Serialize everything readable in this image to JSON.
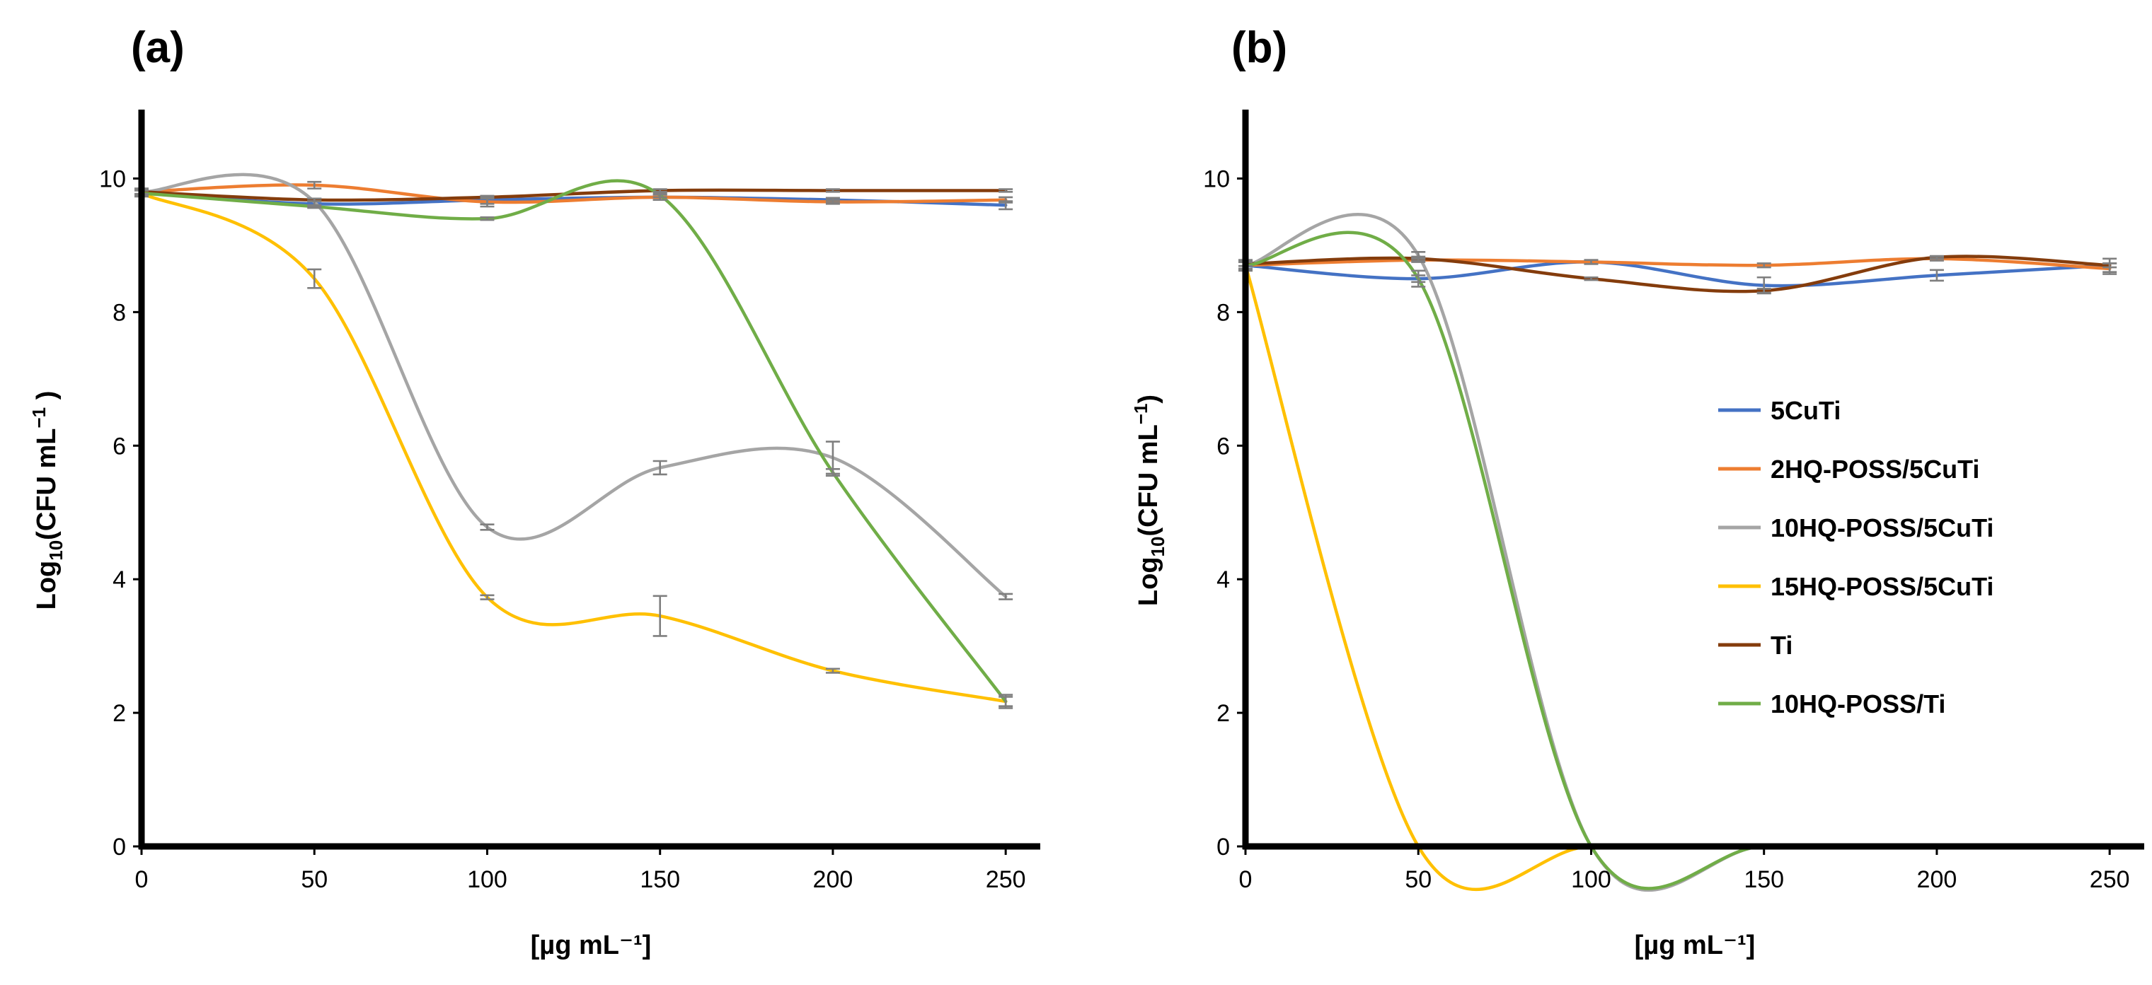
{
  "chart_data": [
    {
      "panel_label": "(a)",
      "type": "line",
      "xlabel": "[µg mL⁻¹]",
      "ylabel": "Log10(CFU mL⁻¹ )",
      "ylabel_main": "Log",
      "ylabel_sub": "10",
      "ylabel_rest": "(CFU mL",
      "ylabel_sup": "−1",
      "ylabel_end": " )",
      "xlim": [
        0,
        260
      ],
      "ylim": [
        0,
        11
      ],
      "xticks": [
        0,
        50,
        100,
        150,
        200,
        250
      ],
      "yticks": [
        0,
        2,
        4,
        6,
        8,
        10
      ],
      "xtick_labels": [
        "0",
        "50",
        "100",
        "150",
        "200",
        "250"
      ],
      "ytick_labels": [
        "0",
        "2",
        "4",
        "6",
        "8",
        "10"
      ],
      "x": [
        0,
        50,
        100,
        150,
        200,
        250
      ],
      "series": [
        {
          "name": "5CuTi",
          "color": "#4472C4",
          "values": [
            9.8,
            9.62,
            9.68,
            9.72,
            9.68,
            9.6
          ],
          "errors": [
            0.05,
            0.04,
            0.06,
            0.04,
            0.03,
            0.06
          ]
        },
        {
          "name": "2HQ-POSS/5CuTi",
          "color": "#ED7D31",
          "values": [
            9.8,
            9.9,
            9.65,
            9.72,
            9.65,
            9.68
          ],
          "errors": [
            0.05,
            0.05,
            0.07,
            0.04,
            0.03,
            0.04
          ]
        },
        {
          "name": "10HQ-POSS/5CuTi",
          "color": "#A5A5A5",
          "values": [
            9.8,
            9.65,
            4.78,
            5.67,
            5.82,
            3.74
          ],
          "errors": [
            0.05,
            0.05,
            0.04,
            0.1,
            0.24,
            0.04
          ]
        },
        {
          "name": "15HQ-POSS/5CuTi",
          "color": "#FFC000",
          "values": [
            9.78,
            8.5,
            3.73,
            3.45,
            2.63,
            2.17
          ],
          "errors": [
            0.05,
            0.14,
            0.03,
            0.3,
            0.03,
            0.07
          ]
        },
        {
          "name": "Ti",
          "color": "#843C0C",
          "values": [
            9.8,
            9.68,
            9.72,
            9.82,
            9.82,
            9.82
          ],
          "errors": [
            0.03,
            0.02,
            0.02,
            0.02,
            0.02,
            0.02
          ]
        },
        {
          "name": "10HQ-POSS/Ti",
          "color": "#70AD47",
          "values": [
            9.78,
            9.58,
            9.4,
            9.75,
            5.6,
            2.17
          ],
          "errors": [
            0.04,
            0.02,
            0.02,
            0.03,
            0.05,
            0.1
          ]
        }
      ]
    },
    {
      "panel_label": "(b)",
      "type": "line",
      "xlabel": "[µg mL⁻¹]",
      "ylabel": "Log10(CFU mL⁻¹)",
      "ylabel_main": "Log",
      "ylabel_sub": "10",
      "ylabel_rest": "(CFU mL",
      "ylabel_sup": "−1",
      "ylabel_end": ")",
      "xlim": [
        0,
        260
      ],
      "ylim": [
        0,
        11
      ],
      "xticks": [
        0,
        50,
        100,
        150,
        200,
        250
      ],
      "yticks": [
        0,
        2,
        4,
        6,
        8,
        10
      ],
      "xtick_labels": [
        "0",
        "50",
        "100",
        "150",
        "200",
        "250"
      ],
      "ytick_labels": [
        "0",
        "2",
        "4",
        "6",
        "8",
        "10"
      ],
      "x": [
        0,
        50,
        100,
        150,
        200,
        250
      ],
      "legend": [
        "5CuTi",
        "2HQ-POSS/5CuTi",
        "10HQ-POSS/5CuTi",
        "15HQ-POSS/5CuTi",
        "Ti",
        "10HQ-POSS/Ti"
      ],
      "legend_position": "right-center",
      "series": [
        {
          "name": "5CuTi",
          "color": "#4472C4",
          "values": [
            8.7,
            8.5,
            8.75,
            8.4,
            8.55,
            8.7
          ],
          "errors": [
            0.08,
            0.05,
            0.03,
            0.12,
            0.08,
            0.1
          ]
        },
        {
          "name": "2HQ-POSS/5CuTi",
          "color": "#ED7D31",
          "values": [
            8.7,
            8.78,
            8.75,
            8.7,
            8.8,
            8.65
          ],
          "errors": [
            0.05,
            0.03,
            0.03,
            0.03,
            0.03,
            0.08
          ]
        },
        {
          "name": "10HQ-POSS/5CuTi",
          "color": "#A5A5A5",
          "values": [
            8.7,
            8.85,
            0.0,
            0.0,
            0.0,
            0.0
          ],
          "errors": [
            0.08,
            0.05,
            0,
            0,
            0,
            0
          ]
        },
        {
          "name": "15HQ-POSS/5CuTi",
          "color": "#FFC000",
          "values": [
            8.7,
            0.0,
            0.0,
            0.0,
            0.0,
            0.0
          ],
          "errors": [
            0.05,
            0,
            0,
            0,
            0,
            0
          ]
        },
        {
          "name": "Ti",
          "color": "#843C0C",
          "values": [
            8.72,
            8.8,
            8.5,
            8.32,
            8.82,
            8.7
          ],
          "errors": [
            0.03,
            0.03,
            0.02,
            0.03,
            0.02,
            0.03
          ]
        },
        {
          "name": "10HQ-POSS/Ti",
          "color": "#70AD47",
          "values": [
            8.7,
            8.5,
            0.0,
            0.0,
            0.0,
            0.0
          ],
          "errors": [
            0.06,
            0.12,
            0,
            0,
            0,
            0
          ]
        }
      ]
    }
  ]
}
